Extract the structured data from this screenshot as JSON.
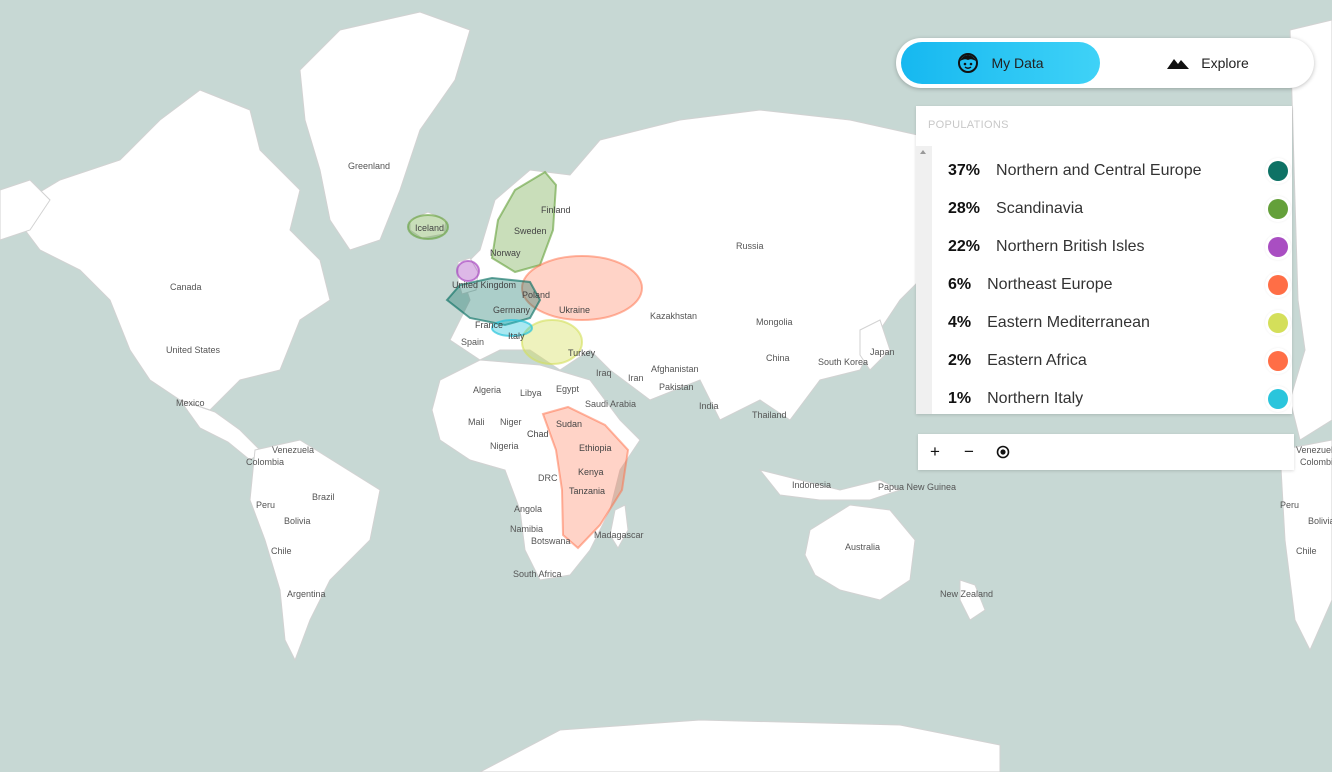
{
  "map": {
    "countries": [
      {
        "name": "Greenland"
      },
      {
        "name": "Iceland"
      },
      {
        "name": "Canada"
      },
      {
        "name": "United States"
      },
      {
        "name": "Mexico"
      },
      {
        "name": "Venezuela"
      },
      {
        "name": "Colombia"
      },
      {
        "name": "Brazil"
      },
      {
        "name": "Peru"
      },
      {
        "name": "Bolivia"
      },
      {
        "name": "Chile"
      },
      {
        "name": "Argentina"
      },
      {
        "name": "Finland"
      },
      {
        "name": "Sweden"
      },
      {
        "name": "Norway"
      },
      {
        "name": "United Kingdom"
      },
      {
        "name": "Poland"
      },
      {
        "name": "Germany"
      },
      {
        "name": "France"
      },
      {
        "name": "Ukraine"
      },
      {
        "name": "Spain"
      },
      {
        "name": "Italy"
      },
      {
        "name": "Turkey"
      },
      {
        "name": "Russia"
      },
      {
        "name": "Kazakhstan"
      },
      {
        "name": "Mongolia"
      },
      {
        "name": "China"
      },
      {
        "name": "South Korea"
      },
      {
        "name": "Japan"
      },
      {
        "name": "Iraq"
      },
      {
        "name": "Iran"
      },
      {
        "name": "Afghanistan"
      },
      {
        "name": "Pakistan"
      },
      {
        "name": "India"
      },
      {
        "name": "Thailand"
      },
      {
        "name": "Algeria"
      },
      {
        "name": "Libya"
      },
      {
        "name": "Egypt"
      },
      {
        "name": "Saudi Arabia"
      },
      {
        "name": "Mali"
      },
      {
        "name": "Niger"
      },
      {
        "name": "Chad"
      },
      {
        "name": "Sudan"
      },
      {
        "name": "Nigeria"
      },
      {
        "name": "Ethiopia"
      },
      {
        "name": "DRC"
      },
      {
        "name": "Kenya"
      },
      {
        "name": "Tanzania"
      },
      {
        "name": "Angola"
      },
      {
        "name": "Namibia"
      },
      {
        "name": "Botswana"
      },
      {
        "name": "Madagascar"
      },
      {
        "name": "South Africa"
      },
      {
        "name": "Indonesia"
      },
      {
        "name": "Papua New Guinea"
      },
      {
        "name": "Australia"
      },
      {
        "name": "New Zealand"
      },
      {
        "name": "Venezuela"
      },
      {
        "name": "Colombia"
      },
      {
        "name": "Peru"
      },
      {
        "name": "Bolivia"
      },
      {
        "name": "Chile"
      }
    ]
  },
  "toggle": {
    "my_data_label": "My Data",
    "explore_label": "Explore"
  },
  "panel": {
    "title": "POPULATIONS",
    "populations": [
      {
        "pct": "37%",
        "name": "Northern and Central Europe",
        "color": "#0e7265"
      },
      {
        "pct": "28%",
        "name": "Scandinavia",
        "color": "#64a03a"
      },
      {
        "pct": "22%",
        "name": "Northern British Isles",
        "color": "#a94ec2"
      },
      {
        "pct": "6%",
        "name": "Northeast Europe",
        "color": "#ff6e46"
      },
      {
        "pct": "4%",
        "name": "Eastern Mediterranean",
        "color": "#d4df5a"
      },
      {
        "pct": "2%",
        "name": "Eastern Africa",
        "color": "#ff6e46"
      },
      {
        "pct": "1%",
        "name": "Northern Italy",
        "color": "#2ac5dc"
      }
    ]
  },
  "zoom": {
    "zoom_in": "+",
    "zoom_out": "−",
    "locate_icon": "locate-icon"
  }
}
